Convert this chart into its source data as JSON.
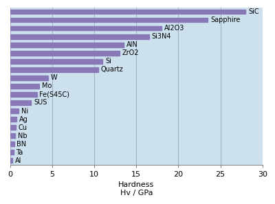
{
  "materials": [
    "SiC",
    "Sapphire",
    "Al2O3",
    "Si3N4",
    "AlN",
    "ZrO2",
    "Si",
    "Quartz",
    "W",
    "Mo",
    "Fe(S45C)",
    "SUS",
    "Ni",
    "Ag",
    "Cu",
    "Nb",
    "BN",
    "Ta",
    "Al"
  ],
  "hardness": [
    28.0,
    23.5,
    18.0,
    16.5,
    13.5,
    13.0,
    11.0,
    10.5,
    4.5,
    3.5,
    3.2,
    2.5,
    1.0,
    0.8,
    0.7,
    0.6,
    0.5,
    0.4,
    0.3
  ],
  "bar_color": "#8878b8",
  "figure_bg": "#ffffff",
  "plot_bg_color": "#cce0ee",
  "grid_color": "#9ab0c0",
  "xlabel_line1": "Hardness",
  "xlabel_line2": "Hv / GPa",
  "xlim": [
    0,
    30
  ],
  "xticks": [
    0,
    5,
    10,
    15,
    20,
    25,
    30
  ],
  "label_fontsize": 7.0,
  "axis_fontsize": 8.0,
  "bar_height": 0.55
}
